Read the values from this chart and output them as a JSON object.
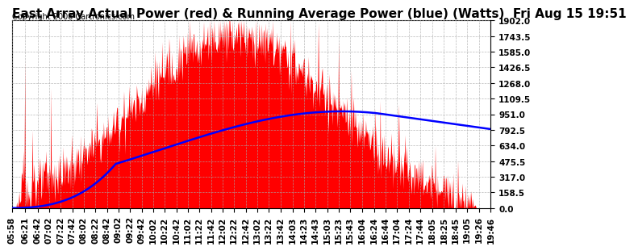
{
  "title": "East Array Actual Power (red) & Running Average Power (blue) (Watts)  Fri Aug 15 19:51",
  "copyright": "Copyright 2008 Cartronics.com",
  "y_max": 1902.0,
  "y_min": 0.0,
  "y_ticks": [
    0.0,
    158.5,
    317.0,
    475.5,
    634.0,
    792.5,
    951.0,
    1109.5,
    1268.0,
    1426.5,
    1585.0,
    1743.5,
    1902.0
  ],
  "x_labels": [
    "05:58",
    "06:21",
    "06:42",
    "07:02",
    "07:22",
    "07:42",
    "08:02",
    "08:22",
    "08:42",
    "09:02",
    "09:22",
    "09:42",
    "10:02",
    "10:22",
    "10:42",
    "11:02",
    "11:22",
    "11:42",
    "12:02",
    "12:22",
    "12:42",
    "13:02",
    "13:22",
    "13:42",
    "14:03",
    "14:23",
    "14:43",
    "15:03",
    "15:23",
    "15:43",
    "16:04",
    "16:24",
    "16:44",
    "17:04",
    "17:24",
    "17:44",
    "18:05",
    "18:25",
    "18:45",
    "19:05",
    "19:26",
    "19:46"
  ],
  "bg_color": "#ffffff",
  "plot_bg_color": "#ffffff",
  "grid_color": "#aaaaaa",
  "actual_color": "#ff0000",
  "avg_color": "#0000ff",
  "title_fontsize": 11,
  "tick_fontsize": 7.5
}
